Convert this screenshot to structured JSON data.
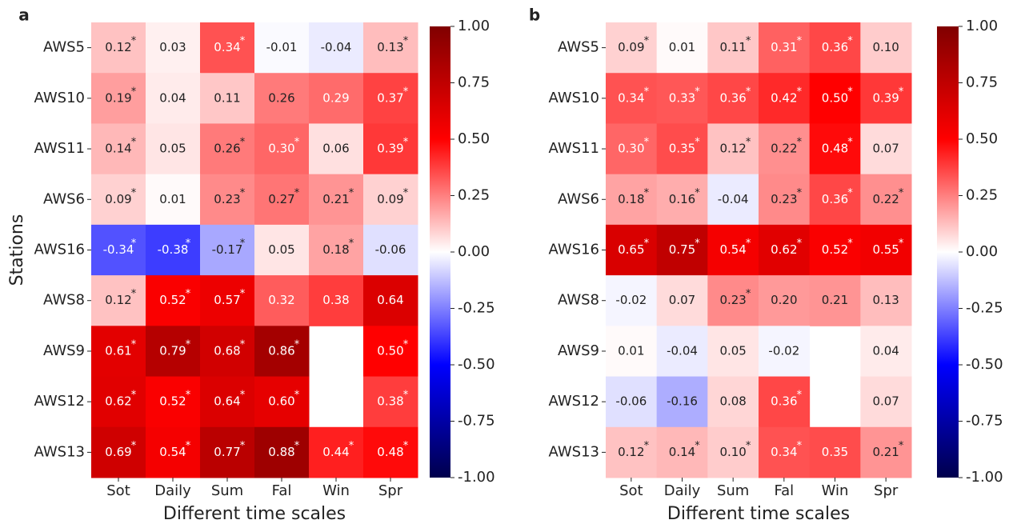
{
  "chart_data": [
    {
      "type": "heatmap",
      "panel": "a",
      "xlabel": "Different time scales",
      "ylabel": "Stations",
      "categories": [
        "Sot",
        "Daily",
        "Sum",
        "Fal",
        "Win",
        "Spr"
      ],
      "rows": [
        "AWS5",
        "AWS10",
        "AWS11",
        "AWS6",
        "AWS16",
        "AWS8",
        "AWS9",
        "AWS12",
        "AWS13"
      ],
      "values": [
        [
          0.12,
          0.03,
          0.34,
          -0.01,
          -0.04,
          0.13
        ],
        [
          0.19,
          0.04,
          0.11,
          0.26,
          0.29,
          0.37
        ],
        [
          0.14,
          0.05,
          0.26,
          0.3,
          0.06,
          0.39
        ],
        [
          0.09,
          0.01,
          0.23,
          0.27,
          0.21,
          0.09
        ],
        [
          -0.34,
          -0.38,
          -0.17,
          0.05,
          0.18,
          -0.06
        ],
        [
          0.12,
          0.52,
          0.57,
          0.32,
          0.38,
          0.64
        ],
        [
          0.61,
          0.79,
          0.68,
          0.86,
          null,
          0.5
        ],
        [
          0.62,
          0.52,
          0.64,
          0.6,
          null,
          0.38
        ],
        [
          0.69,
          0.54,
          0.77,
          0.88,
          0.44,
          0.48
        ]
      ],
      "value_labels": [
        [
          "0.12",
          "0.03",
          "0.34",
          "-0.01",
          "-0.04",
          "0.13"
        ],
        [
          "0.19",
          "0.04",
          "0.11",
          "0.26",
          "0.29",
          "0.37"
        ],
        [
          "0.14",
          "0.05",
          "0.26",
          "0.30",
          "0.06",
          "0.39"
        ],
        [
          "0.09",
          "0.01",
          "0.23",
          "0.27",
          "0.21",
          "0.09"
        ],
        [
          "-0.34",
          "-0.38",
          "-0.17",
          "0.05",
          "0.18",
          "-0.06"
        ],
        [
          "0.12",
          "0.52",
          "0.57",
          "0.32",
          "0.38",
          "0.64"
        ],
        [
          "0.61",
          "0.79",
          "0.68",
          "0.86",
          null,
          "0.50"
        ],
        [
          "0.62",
          "0.52",
          "0.64",
          "0.60",
          null,
          "0.38"
        ],
        [
          "0.69",
          "0.54",
          "0.77",
          "0.88",
          "0.44",
          "0.48"
        ]
      ],
      "stars": [
        [
          "*",
          null,
          "*",
          null,
          null,
          "*"
        ],
        [
          "*",
          null,
          null,
          null,
          null,
          "*"
        ],
        [
          "*",
          null,
          "*",
          "*",
          null,
          "*"
        ],
        [
          "*",
          null,
          "*",
          "*",
          "*",
          "*"
        ],
        [
          "*",
          "*",
          "*",
          null,
          "*",
          null
        ],
        [
          "*",
          "*",
          "*",
          null,
          null,
          null
        ],
        [
          "*",
          "*",
          "*",
          "*",
          null,
          "*"
        ],
        [
          "*",
          "*",
          "*",
          "*",
          null,
          "*"
        ],
        [
          "*",
          "*",
          "*",
          "*",
          "*",
          "*"
        ]
      ],
      "clim": [
        -1,
        1
      ],
      "cticks": [
        {
          "value": 1,
          "label": "1.00"
        },
        {
          "value": 0.75,
          "label": "0.75"
        },
        {
          "value": 0.5,
          "label": "0.50"
        },
        {
          "value": 0.25,
          "label": "0.25"
        },
        {
          "value": 0,
          "label": "0.00"
        },
        {
          "value": -0.25,
          "label": "-0.25"
        },
        {
          "value": -0.5,
          "label": "-0.50"
        },
        {
          "value": -0.75,
          "label": "-0.75"
        },
        {
          "value": -1,
          "label": "-1.00"
        }
      ],
      "colormap": [
        "#00004c",
        "#0000ff",
        "#ffffff",
        "#ff0000",
        "#800000"
      ]
    },
    {
      "type": "heatmap",
      "panel": "b",
      "xlabel": "Different time scales",
      "categories": [
        "Sot",
        "Daily",
        "Sum",
        "Fal",
        "Win",
        "Spr"
      ],
      "rows": [
        "AWS5",
        "AWS10",
        "AWS11",
        "AWS6",
        "AWS16",
        "AWS8",
        "AWS9",
        "AWS12",
        "AWS13"
      ],
      "values": [
        [
          0.09,
          0.01,
          0.11,
          0.31,
          0.36,
          0.1
        ],
        [
          0.34,
          0.33,
          0.36,
          0.42,
          0.5,
          0.39
        ],
        [
          0.3,
          0.35,
          0.12,
          0.22,
          0.48,
          0.07
        ],
        [
          0.18,
          0.16,
          -0.04,
          0.23,
          0.36,
          0.22
        ],
        [
          0.65,
          0.75,
          0.54,
          0.62,
          0.52,
          0.55
        ],
        [
          -0.02,
          0.07,
          0.23,
          0.2,
          0.21,
          0.13
        ],
        [
          0.01,
          -0.04,
          0.05,
          -0.02,
          null,
          0.04
        ],
        [
          -0.06,
          -0.16,
          0.08,
          0.36,
          null,
          0.07
        ],
        [
          0.12,
          0.14,
          0.1,
          0.34,
          0.35,
          0.21
        ]
      ],
      "value_labels": [
        [
          "0.09",
          "0.01",
          "0.11",
          "0.31",
          "0.36",
          "0.10"
        ],
        [
          "0.34",
          "0.33",
          "0.36",
          "0.42",
          "0.50",
          "0.39"
        ],
        [
          "0.30",
          "0.35",
          "0.12",
          "0.22",
          "0.48",
          "0.07"
        ],
        [
          "0.18",
          "0.16",
          "-0.04",
          "0.23",
          "0.36",
          "0.22"
        ],
        [
          "0.65",
          "0.75",
          "0.54",
          "0.62",
          "0.52",
          "0.55"
        ],
        [
          "-0.02",
          "0.07",
          "0.23",
          "0.20",
          "0.21",
          "0.13"
        ],
        [
          "0.01",
          "-0.04",
          "0.05",
          "-0.02",
          null,
          "0.04"
        ],
        [
          "-0.06",
          "-0.16",
          "0.08",
          "0.36",
          null,
          "0.07"
        ],
        [
          "0.12",
          "0.14",
          "0.10",
          "0.34",
          "0.35",
          "0.21"
        ]
      ],
      "stars": [
        [
          "*",
          null,
          "*",
          "*",
          "*",
          null
        ],
        [
          "*",
          "*",
          "*",
          "*",
          "*",
          "*"
        ],
        [
          "*",
          "*",
          "*",
          "*",
          "*",
          null
        ],
        [
          "*",
          "*",
          null,
          "*",
          "*",
          "*"
        ],
        [
          "*",
          "*",
          "*",
          "*",
          "*",
          "*"
        ],
        [
          null,
          null,
          "*",
          null,
          null,
          null
        ],
        [
          null,
          null,
          null,
          null,
          null,
          null
        ],
        [
          null,
          null,
          null,
          "*",
          null,
          null
        ],
        [
          "*",
          "*",
          "*",
          "*",
          null,
          "*"
        ]
      ],
      "clim": [
        -1,
        1
      ],
      "cticks": [
        {
          "value": 1,
          "label": "1.00"
        },
        {
          "value": 0.75,
          "label": "0.75"
        },
        {
          "value": 0.5,
          "label": "0.50"
        },
        {
          "value": 0.25,
          "label": "0.25"
        },
        {
          "value": 0,
          "label": "0.00"
        },
        {
          "value": -0.25,
          "label": "-0.25"
        },
        {
          "value": -0.5,
          "label": "-0.50"
        },
        {
          "value": -0.75,
          "label": "-0.75"
        },
        {
          "value": -1,
          "label": "-1.00"
        }
      ],
      "colormap": [
        "#00004c",
        "#0000ff",
        "#ffffff",
        "#ff0000",
        "#800000"
      ]
    }
  ]
}
